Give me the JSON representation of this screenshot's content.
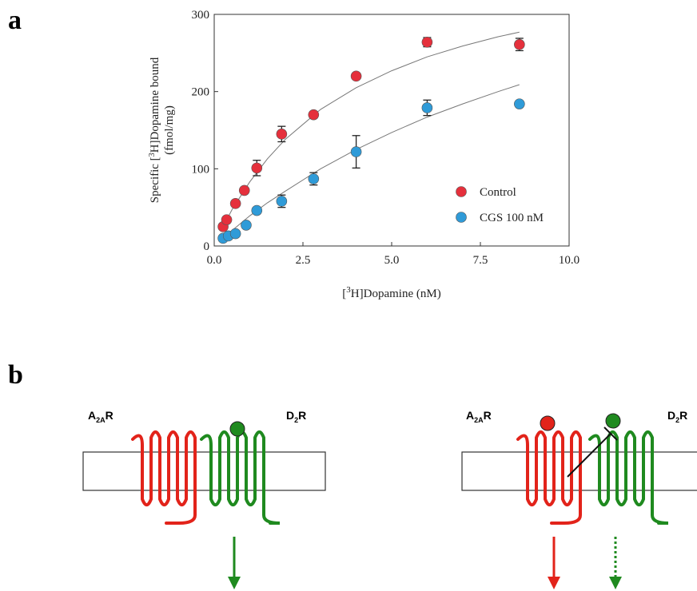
{
  "panel_labels": [
    "a",
    "b"
  ],
  "chart_data": {
    "type": "scatter",
    "y_label_parts": [
      "Specific [",
      "3",
      "H]Dopamine bound"
    ],
    "y_label_unit": "(fmol/mg)",
    "x_label_parts": [
      "[",
      "3",
      "H]Dopamine (nM)"
    ],
    "xlim": [
      0,
      10
    ],
    "ylim": [
      0,
      300
    ],
    "xticks": [
      {
        "value": 0,
        "label": "0.0"
      },
      2.5,
      {
        "value": 5,
        "label": "5.0"
      },
      7.5,
      {
        "value": 10,
        "label": "10.0"
      }
    ],
    "yticks": [
      0,
      100,
      200,
      300
    ],
    "legend": "right",
    "series": [
      {
        "name": "Control",
        "color": "#e5303c",
        "x": [
          0.25,
          0.35,
          0.6,
          0.85,
          1.2,
          1.9,
          2.8,
          4.0,
          6.0,
          8.6
        ],
        "values": [
          25,
          34,
          55,
          72,
          101,
          145,
          170,
          220,
          264,
          261
        ],
        "errors": [
          3,
          3,
          3,
          4,
          10,
          10,
          4,
          3,
          6,
          8
        ]
      },
      {
        "name": "CGS 100 nM",
        "color": "#2f9bd8",
        "x": [
          0.25,
          0.4,
          0.6,
          0.9,
          1.2,
          1.9,
          2.8,
          4.0,
          6.0,
          8.6
        ],
        "values": [
          10,
          13,
          16,
          27,
          46,
          58,
          87,
          122,
          179,
          184
        ],
        "errors": [
          2,
          2,
          3,
          4,
          4,
          8,
          8,
          21,
          10,
          3
        ]
      }
    ],
    "fits": [
      {
        "color": "#777777",
        "x": [
          0.25,
          0.5,
          1,
          1.5,
          2,
          3,
          4,
          5,
          6,
          7,
          8,
          8.6
        ],
        "values": [
          25,
          47,
          83,
          113,
          138,
          177,
          205,
          227,
          245,
          259,
          271,
          277
        ]
      },
      {
        "color": "#777777",
        "x": [
          0.25,
          0.5,
          1,
          1.5,
          2,
          3,
          4,
          5,
          6,
          7,
          8,
          8.6
        ],
        "values": [
          10,
          20,
          39,
          56,
          71,
          100,
          125,
          147,
          167,
          184,
          200,
          209
        ]
      }
    ]
  },
  "diagram": {
    "left": {
      "labels": [
        {
          "name": "A",
          "sub": "2A",
          "suffix": "R"
        },
        {
          "name": "D",
          "sub": "2",
          "suffix": "R"
        }
      ]
    },
    "right": {
      "labels": [
        {
          "name": "A",
          "sub": "2A",
          "suffix": "R"
        },
        {
          "name": "D",
          "sub": "2",
          "suffix": "R"
        }
      ]
    }
  }
}
